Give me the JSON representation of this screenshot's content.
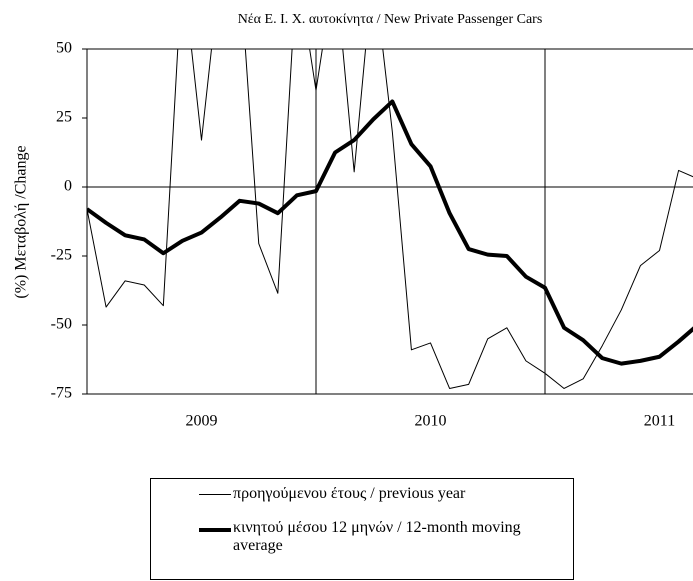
{
  "chart_data": {
    "type": "line",
    "title": "Νέα Ε. Ι. Χ. αυτοκίνητα / New Private Passenger Cars",
    "y_label": "(%) Μεταβολή /Change",
    "categories": [
      null,
      null,
      null,
      null,
      null,
      null,
      null,
      null,
      null,
      null,
      null,
      null,
      null,
      null,
      null,
      null,
      null,
      null,
      null,
      null,
      null,
      null,
      null,
      null,
      null,
      null,
      null,
      null,
      null,
      null,
      null,
      null,
      null
    ],
    "year_labels": [
      "2009",
      "2010",
      "2011"
    ],
    "series": [
      {
        "name": "προηγούμενου έτους / previous year",
        "color": "#000000",
        "width": 1,
        "values": [
          -8,
          -43.5,
          -34,
          -35.5,
          -43,
          80,
          17,
          80,
          80,
          -20.5,
          -38.5,
          80,
          35,
          80,
          5.5,
          80,
          20,
          -59,
          -56.5,
          -73,
          -71.5,
          -55,
          -51,
          -63,
          -67.5,
          -73,
          -69.5,
          -57.5,
          -44.5,
          -28.5,
          -23,
          6,
          3
        ]
      },
      {
        "name": "κινητού μέσου 12 μηνών / 12-month moving average",
        "color": "#000000",
        "width": 4,
        "values": [
          -8,
          -13,
          -17.5,
          -19,
          -24,
          -19.5,
          -16.5,
          -11,
          -5,
          -6,
          -9.5,
          -3,
          -1.5,
          12.5,
          17,
          24.5,
          31,
          15.5,
          7.5,
          -9.5,
          -22.5,
          -24.5,
          -25,
          -32.5,
          -36.5,
          -51,
          -55.5,
          -62,
          -64,
          -63,
          -61.5,
          -56,
          -50
        ]
      }
    ],
    "ylim": [
      -75,
      50
    ],
    "yticks": [
      -75,
      -50,
      -25,
      0,
      25,
      50
    ]
  }
}
